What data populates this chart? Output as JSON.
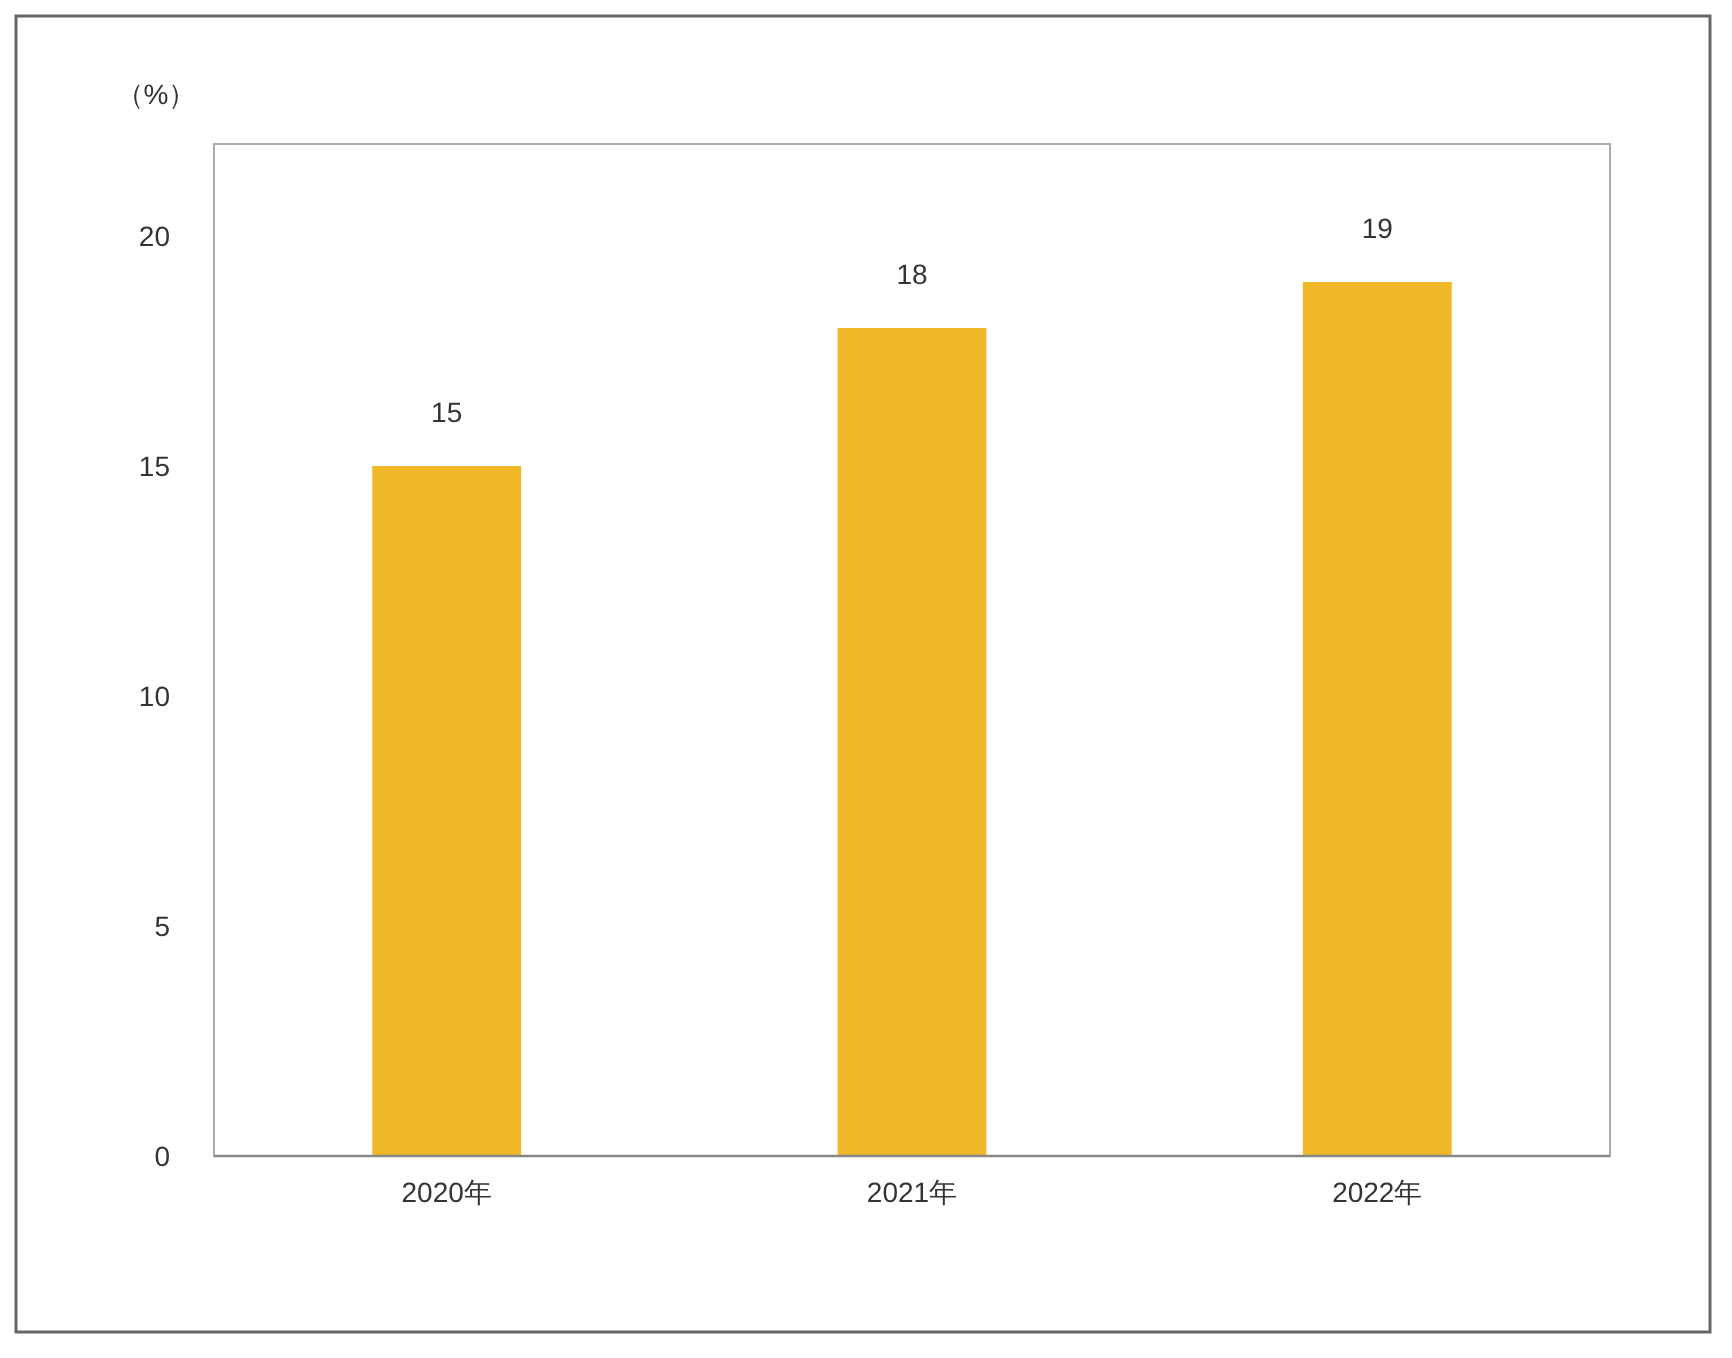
{
  "chart_data": {
    "type": "bar",
    "ylabel": "（%）",
    "categories": [
      "2020年",
      "2021年",
      "2022年"
    ],
    "values": [
      15,
      18,
      19
    ],
    "color": "#f0b828",
    "ylim": [
      0,
      22
    ],
    "yticks": [
      0,
      5,
      10,
      15,
      20
    ],
    "data_labels": true
  }
}
